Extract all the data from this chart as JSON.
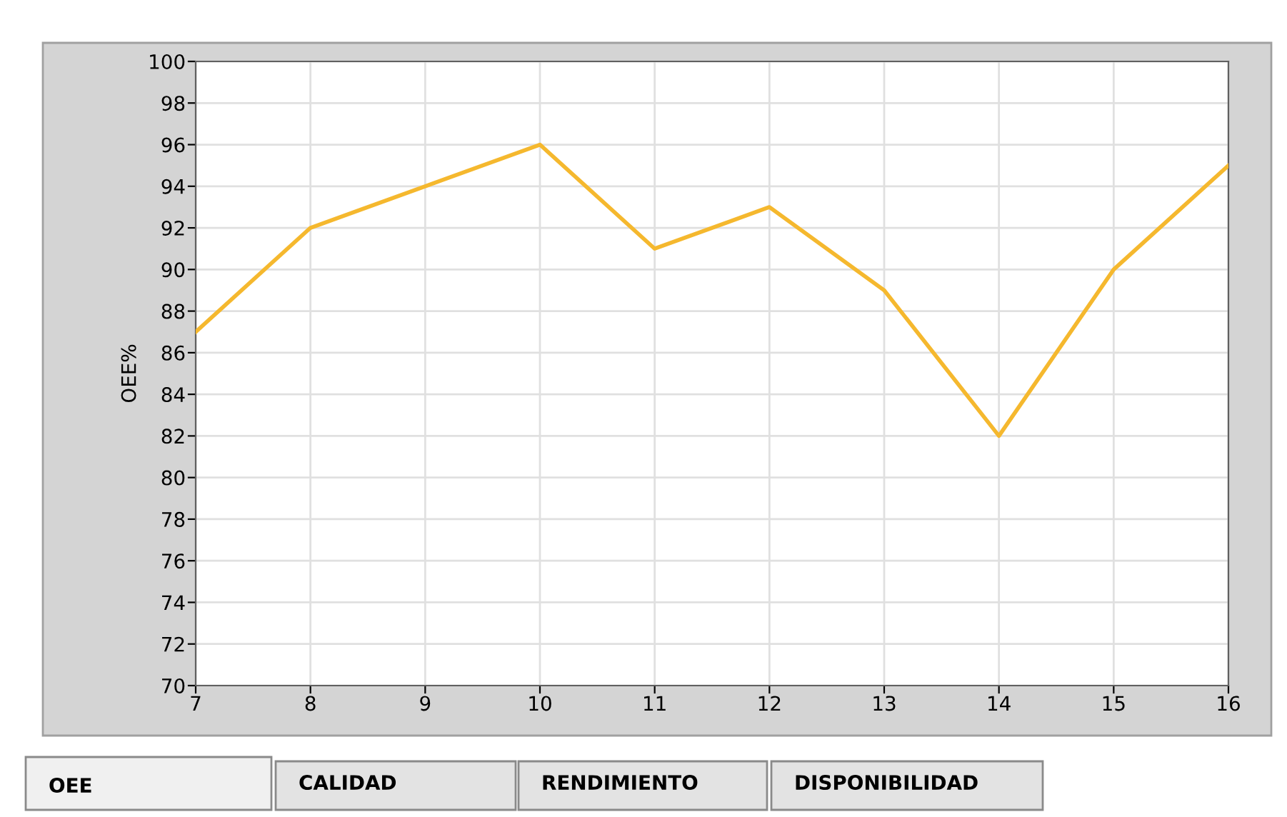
{
  "chart_data": {
    "type": "line",
    "ylabel": "OEE%",
    "x": [
      7,
      8,
      9,
      10,
      11,
      12,
      13,
      14,
      15,
      16
    ],
    "series": [
      {
        "color": "#f5b82e",
        "values": [
          87,
          92,
          94,
          96,
          91,
          93,
          89,
          82,
          90,
          95
        ]
      }
    ],
    "xlim": [
      7,
      16
    ],
    "xticks": [
      7,
      8,
      9,
      10,
      11,
      12,
      13,
      14,
      15,
      16
    ],
    "ylim": [
      70,
      100
    ],
    "yticks": [
      70,
      72,
      74,
      76,
      78,
      80,
      82,
      84,
      86,
      88,
      90,
      92,
      94,
      96,
      98,
      100
    ],
    "grid": true,
    "marker": "none",
    "line_style": "solid",
    "annotations": [
      "OEE",
      "CALIDAD",
      "RENDIMIENTO",
      "DISPONIBILIDAD"
    ]
  }
}
